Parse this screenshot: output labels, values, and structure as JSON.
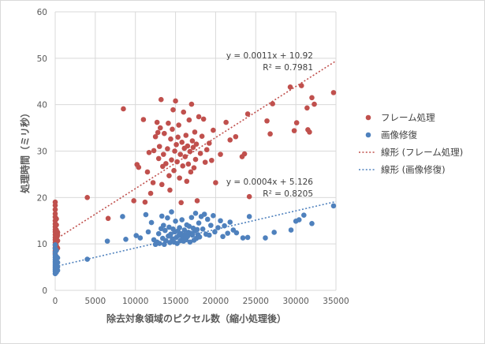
{
  "chart_data": {
    "type": "scatter",
    "title": "",
    "xlabel": "除去対象領域のピクセル数（縮小処理後）",
    "ylabel": "処理時間（ミリ秒）",
    "xlim": [
      0,
      35000
    ],
    "ylim": [
      0,
      60
    ],
    "x_ticks": [
      0,
      5000,
      10000,
      15000,
      20000,
      25000,
      30000,
      35000
    ],
    "y_ticks": [
      0,
      10,
      20,
      30,
      40,
      50,
      60
    ],
    "x_tick_labels": [
      "0",
      "5000",
      "10000",
      "15000",
      "20000",
      "25000",
      "30000",
      "35000"
    ],
    "y_tick_labels": [
      "0",
      "10",
      "20",
      "30",
      "40",
      "50",
      "60"
    ],
    "grid": "vertical and horizontal major gridlines",
    "legend_position": "right",
    "series": [
      {
        "name": "フレーム処理",
        "color": "#c0504d",
        "points": [
          [
            0,
            8.5
          ],
          [
            0,
            9.2
          ],
          [
            0,
            9.8
          ],
          [
            0,
            10.3
          ],
          [
            0,
            10.9
          ],
          [
            0,
            11.4
          ],
          [
            0,
            12.0
          ],
          [
            0,
            12.6
          ],
          [
            0,
            13.1
          ],
          [
            0,
            13.7
          ],
          [
            0,
            14.3
          ],
          [
            0,
            15.0
          ],
          [
            0,
            15.8
          ],
          [
            0,
            16.5
          ],
          [
            0,
            17.4
          ],
          [
            0,
            18.3
          ],
          [
            0,
            19.0
          ],
          [
            0,
            7.9
          ],
          [
            150,
            8.7
          ],
          [
            150,
            9.6
          ],
          [
            150,
            10.4
          ],
          [
            150,
            11.3
          ],
          [
            150,
            12.2
          ],
          [
            150,
            13.0
          ],
          [
            150,
            14.1
          ],
          [
            150,
            15.4
          ],
          [
            300,
            9.1
          ],
          [
            300,
            10.7
          ],
          [
            300,
            12.5
          ],
          [
            300,
            11.9
          ],
          [
            4000,
            20.0
          ],
          [
            6600,
            15.5
          ],
          [
            8500,
            39.1
          ],
          [
            9800,
            19.3
          ],
          [
            10200,
            27.1
          ],
          [
            10400,
            26.5
          ],
          [
            11000,
            36.8
          ],
          [
            11200,
            19.0
          ],
          [
            11500,
            25.5
          ],
          [
            11700,
            29.7
          ],
          [
            11900,
            20.9
          ],
          [
            12200,
            23.2
          ],
          [
            12300,
            30.1
          ],
          [
            12500,
            33.1
          ],
          [
            12700,
            36.2
          ],
          [
            12800,
            34.0
          ],
          [
            12900,
            28.4
          ],
          [
            13000,
            31.0
          ],
          [
            13100,
            35.0
          ],
          [
            13200,
            41.1
          ],
          [
            13300,
            22.8
          ],
          [
            13400,
            26.7
          ],
          [
            13500,
            29.3
          ],
          [
            13600,
            33.8
          ],
          [
            13800,
            27.3
          ],
          [
            14000,
            30.5
          ],
          [
            14100,
            36.0
          ],
          [
            14200,
            24.7
          ],
          [
            14300,
            21.6
          ],
          [
            14400,
            32.6
          ],
          [
            14500,
            28.1
          ],
          [
            14600,
            34.7
          ],
          [
            14700,
            38.9
          ],
          [
            14800,
            25.8
          ],
          [
            14900,
            30.0
          ],
          [
            15000,
            40.8
          ],
          [
            15100,
            31.4
          ],
          [
            15200,
            27.7
          ],
          [
            15300,
            33.0
          ],
          [
            15400,
            35.6
          ],
          [
            15500,
            24.2
          ],
          [
            15600,
            29.3
          ],
          [
            15700,
            18.9
          ],
          [
            15800,
            31.9
          ],
          [
            15900,
            26.8
          ],
          [
            16000,
            38.4
          ],
          [
            16100,
            30.6
          ],
          [
            16200,
            28.8
          ],
          [
            16300,
            33.4
          ],
          [
            16400,
            23.5
          ],
          [
            16500,
            31.1
          ],
          [
            16600,
            27.2
          ],
          [
            16700,
            36.7
          ],
          [
            16800,
            29.9
          ],
          [
            16900,
            25.5
          ],
          [
            17000,
            40.1
          ],
          [
            17100,
            32.2
          ],
          [
            17200,
            30.8
          ],
          [
            17300,
            26.4
          ],
          [
            17400,
            34.1
          ],
          [
            17500,
            28.2
          ],
          [
            17600,
            31.5
          ],
          [
            17700,
            19.3
          ],
          [
            17900,
            37.4
          ],
          [
            18100,
            29.5
          ],
          [
            18300,
            33.2
          ],
          [
            18500,
            36.9
          ],
          [
            18700,
            27.6
          ],
          [
            18900,
            30.3
          ],
          [
            19200,
            31.7
          ],
          [
            19500,
            28.0
          ],
          [
            19700,
            34.5
          ],
          [
            20000,
            23.2
          ],
          [
            20600,
            29.3
          ],
          [
            21300,
            36.2
          ],
          [
            21800,
            32.4
          ],
          [
            22500,
            33.1
          ],
          [
            23300,
            28.8
          ],
          [
            23600,
            29.4
          ],
          [
            24000,
            38.0
          ],
          [
            24200,
            20.2
          ],
          [
            26400,
            36.5
          ],
          [
            26800,
            33.7
          ],
          [
            27100,
            40.2
          ],
          [
            29300,
            43.8
          ],
          [
            29800,
            34.4
          ],
          [
            30100,
            36.1
          ],
          [
            30700,
            44.1
          ],
          [
            31400,
            39.3
          ],
          [
            31500,
            34.6
          ],
          [
            31700,
            34.1
          ],
          [
            32000,
            41.5
          ],
          [
            32300,
            40.1
          ],
          [
            34700,
            42.6
          ]
        ]
      },
      {
        "name": "画像修復",
        "color": "#4f81bd",
        "points": [
          [
            0,
            3.6
          ],
          [
            0,
            4.1
          ],
          [
            0,
            4.5
          ],
          [
            0,
            4.9
          ],
          [
            0,
            5.3
          ],
          [
            0,
            5.7
          ],
          [
            0,
            6.1
          ],
          [
            0,
            6.6
          ],
          [
            0,
            7.1
          ],
          [
            0,
            7.6
          ],
          [
            0,
            8.2
          ],
          [
            0,
            9.0
          ],
          [
            0,
            9.8
          ],
          [
            150,
            3.9
          ],
          [
            150,
            4.7
          ],
          [
            150,
            5.5
          ],
          [
            150,
            6.3
          ],
          [
            150,
            7.3
          ],
          [
            150,
            8.6
          ],
          [
            300,
            4.3
          ],
          [
            300,
            5.1
          ],
          [
            300,
            6.0
          ],
          [
            300,
            7.0
          ],
          [
            4000,
            6.7
          ],
          [
            6500,
            10.6
          ],
          [
            8400,
            15.9
          ],
          [
            8800,
            11.0
          ],
          [
            10100,
            11.8
          ],
          [
            10600,
            11.3
          ],
          [
            11300,
            16.3
          ],
          [
            11600,
            12.6
          ],
          [
            12000,
            14.6
          ],
          [
            12300,
            10.9
          ],
          [
            12500,
            9.9
          ],
          [
            12700,
            10.4
          ],
          [
            12900,
            12.2
          ],
          [
            13000,
            10.1
          ],
          [
            13200,
            13.3
          ],
          [
            13300,
            16.0
          ],
          [
            13400,
            11.2
          ],
          [
            13500,
            14.0
          ],
          [
            13600,
            9.9
          ],
          [
            13700,
            12.9
          ],
          [
            13800,
            10.7
          ],
          [
            14000,
            15.6
          ],
          [
            14100,
            11.7
          ],
          [
            14200,
            13.6
          ],
          [
            14300,
            10.3
          ],
          [
            14400,
            12.1
          ],
          [
            14500,
            16.9
          ],
          [
            14600,
            11.1
          ],
          [
            14700,
            13.2
          ],
          [
            14800,
            10.4
          ],
          [
            14900,
            12.6
          ],
          [
            15000,
            14.9
          ],
          [
            15100,
            11.4
          ],
          [
            15200,
            10.1
          ],
          [
            15300,
            12.8
          ],
          [
            15400,
            11.8
          ],
          [
            15500,
            13.5
          ],
          [
            15600,
            10.7
          ],
          [
            15700,
            12.2
          ],
          [
            15800,
            15.2
          ],
          [
            15900,
            11.3
          ],
          [
            16000,
            10.6
          ],
          [
            16100,
            13.0
          ],
          [
            16200,
            12.0
          ],
          [
            16300,
            10.9
          ],
          [
            16400,
            14.1
          ],
          [
            16500,
            11.6
          ],
          [
            16600,
            12.5
          ],
          [
            16700,
            13.8
          ],
          [
            16800,
            10.4
          ],
          [
            16900,
            12.3
          ],
          [
            17000,
            15.7
          ],
          [
            17100,
            11.9
          ],
          [
            17200,
            13.4
          ],
          [
            17300,
            10.8
          ],
          [
            17400,
            12.8
          ],
          [
            17500,
            16.6
          ],
          [
            17600,
            11.2
          ],
          [
            17700,
            13.1
          ],
          [
            17800,
            12.0
          ],
          [
            17900,
            14.5
          ],
          [
            18000,
            11.5
          ],
          [
            18200,
            15.9
          ],
          [
            18400,
            13.2
          ],
          [
            18600,
            16.4
          ],
          [
            18800,
            12.1
          ],
          [
            19000,
            15.3
          ],
          [
            19200,
            11.9
          ],
          [
            19400,
            14.0
          ],
          [
            19700,
            16.1
          ],
          [
            19900,
            12.6
          ],
          [
            20300,
            13.5
          ],
          [
            20600,
            15.0
          ],
          [
            20900,
            11.6
          ],
          [
            21100,
            13.9
          ],
          [
            21500,
            12.3
          ],
          [
            21800,
            14.7
          ],
          [
            22200,
            13.0
          ],
          [
            22600,
            12.4
          ],
          [
            23400,
            11.3
          ],
          [
            24000,
            11.4
          ],
          [
            24200,
            15.9
          ],
          [
            26200,
            11.3
          ],
          [
            27300,
            12.5
          ],
          [
            29400,
            13.0
          ],
          [
            30000,
            14.9
          ],
          [
            30400,
            15.2
          ],
          [
            31000,
            16.2
          ],
          [
            32000,
            14.4
          ],
          [
            34700,
            18.2
          ]
        ]
      }
    ],
    "trendlines": [
      {
        "name": "線形 (フレーム処理)",
        "color": "#c0504d",
        "slope": 0.0011,
        "intercept": 10.92,
        "x_range": [
          0,
          35000
        ],
        "equation": "y = 0.0011x + 10.92",
        "r2": "R² = 0.7981"
      },
      {
        "name": "線形 (画像修復)",
        "color": "#4f81bd",
        "slope": 0.0004,
        "intercept": 5.126,
        "x_range": [
          0,
          35000
        ],
        "equation": "y = 0.0004x + 5.126",
        "r2": "R² = 0.8205"
      }
    ]
  },
  "legend": {
    "items": [
      {
        "label": "フレーム処理",
        "kind": "marker",
        "color": "#c0504d"
      },
      {
        "label": "画像修復",
        "kind": "marker",
        "color": "#4f81bd"
      },
      {
        "label": "線形 (フレーム処理)",
        "kind": "line",
        "color": "#c0504d"
      },
      {
        "label": "線形 (画像修復)",
        "kind": "line",
        "color": "#4f81bd"
      }
    ]
  }
}
